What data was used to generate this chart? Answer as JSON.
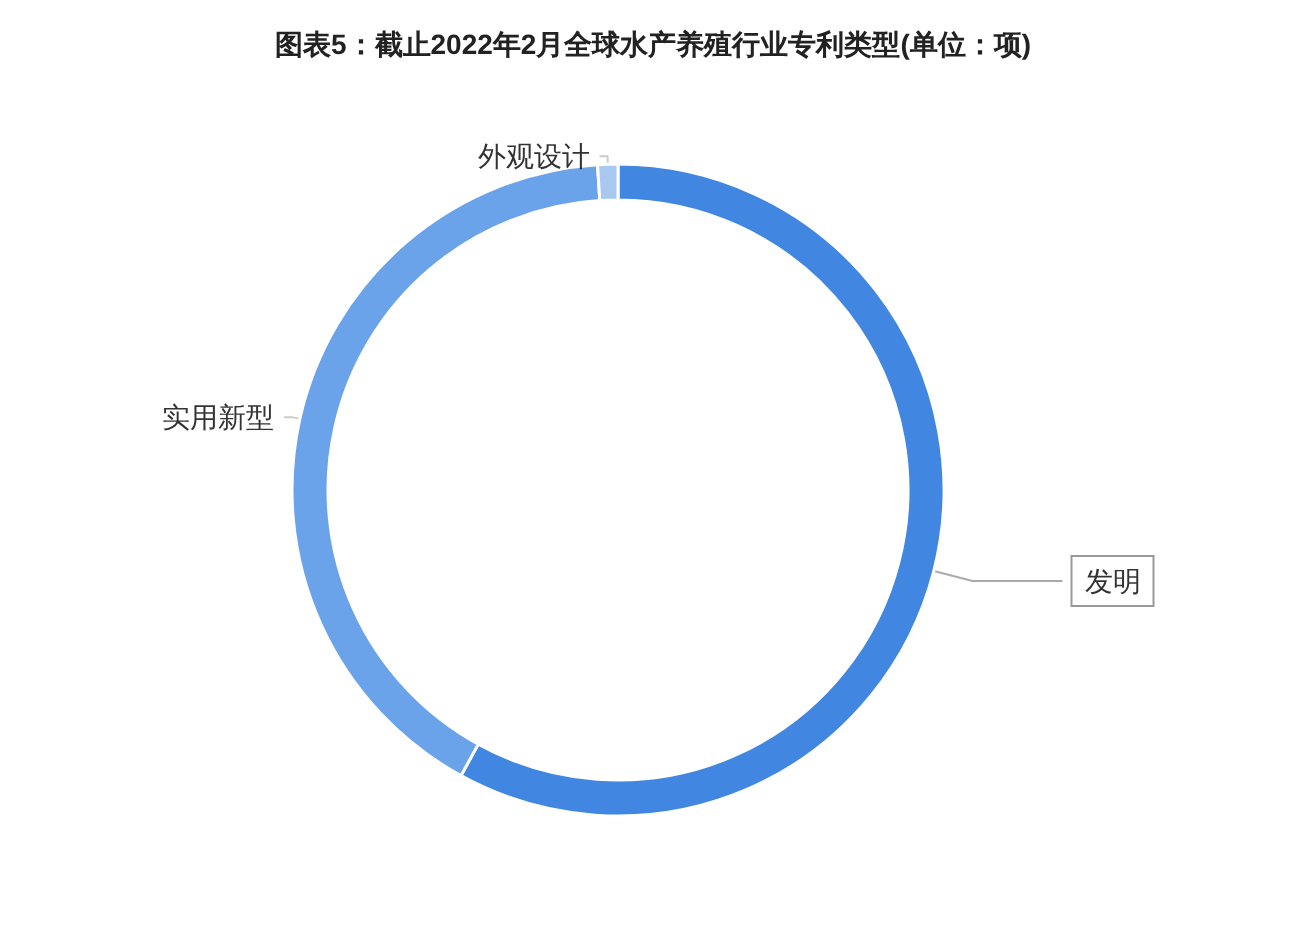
{
  "chart_data": {
    "type": "donut",
    "title": "图表5：截止2022年2月全球水产养殖行业专利类型(单位：项)",
    "categories": [
      "发明",
      "实用新型",
      "外观设计"
    ],
    "values": [
      58,
      41,
      1
    ],
    "colors": [
      "#4186e0",
      "#6aa3ea",
      "#a9c8f0"
    ],
    "legend": false
  }
}
